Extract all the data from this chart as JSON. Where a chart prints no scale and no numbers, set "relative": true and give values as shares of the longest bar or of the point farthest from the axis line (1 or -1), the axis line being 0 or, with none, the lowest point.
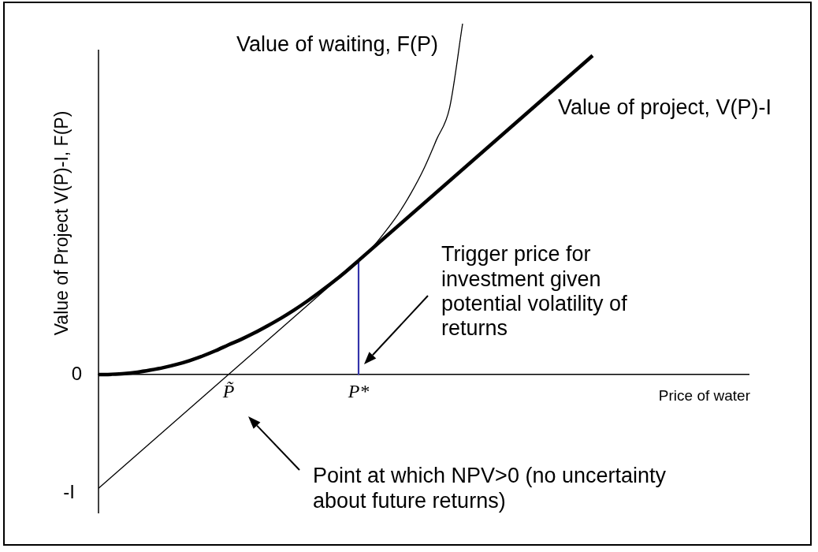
{
  "chart_data": {
    "type": "line",
    "relative": true,
    "xlabel": "Price of water",
    "ylabel": "Value of Project V(P)-I, F(P)",
    "categories": [
      null,
      null,
      null,
      null,
      null,
      null,
      null,
      null,
      null,
      null,
      "P̃",
      null,
      null,
      null,
      null,
      null,
      null,
      null,
      null,
      null,
      "P*",
      null,
      null,
      null,
      null,
      null,
      null,
      null,
      null,
      null,
      null,
      null,
      null,
      null,
      null,
      null,
      null,
      null,
      null,
      null,
      null,
      null,
      null,
      null,
      null,
      null,
      null,
      null,
      null,
      null,
      null
    ],
    "grid": false,
    "legend": false,
    "marker": "none",
    "series": [
      {
        "name": "Value of waiting, F(P)",
        "color": "#000000",
        "values": [
          null,
          null,
          null,
          null,
          null,
          null,
          null,
          null,
          null,
          null,
          null,
          null,
          null,
          null,
          null,
          null,
          null,
          null,
          null,
          null,
          0.325,
          0.36,
          0.405,
          0.455,
          0.515,
          0.585,
          0.67,
          0.76,
          1.0,
          null,
          null,
          null,
          null,
          null,
          null,
          null,
          null,
          null,
          null,
          null,
          null,
          null,
          null,
          null,
          null,
          null,
          null,
          null,
          null,
          null,
          null
        ]
      },
      {
        "color": "#000000",
        "values": [
          0,
          0.001,
          0.003,
          0.007,
          0.013,
          0.02,
          0.029,
          0.04,
          0.053,
          0.068,
          0.085,
          0.101,
          0.119,
          0.139,
          0.16,
          0.183,
          0.208,
          0.235,
          0.263,
          0.293,
          0.325,
          null,
          null,
          null,
          null,
          null,
          null,
          null,
          null,
          null,
          null,
          null,
          null,
          null,
          null,
          null,
          null,
          null,
          null,
          null,
          null,
          null,
          null,
          null,
          null,
          null,
          null,
          null,
          null,
          null,
          null
        ]
      },
      {
        "name": "Value of project, V(P)-I",
        "color": "#000000",
        "values": [
          null,
          null,
          null,
          null,
          null,
          null,
          null,
          null,
          null,
          null,
          null,
          null,
          null,
          null,
          null,
          null,
          null,
          null,
          null,
          null,
          0.325,
          null,
          null,
          null,
          null,
          null,
          null,
          null,
          null,
          null,
          null,
          null,
          null,
          null,
          null,
          null,
          null,
          null,
          0.909,
          null,
          null,
          null,
          null,
          null,
          null,
          null,
          null,
          null,
          null,
          null,
          null
        ]
      },
      {
        "color": "#000000",
        "values": [
          -0.324,
          null,
          null,
          null,
          null,
          null,
          null,
          null,
          null,
          null,
          null,
          null,
          null,
          null,
          null,
          null,
          null,
          null,
          null,
          null,
          0.325,
          null,
          null,
          null,
          null,
          null,
          null,
          null,
          null,
          null,
          null,
          null,
          null,
          null,
          null,
          null,
          null,
          null,
          null,
          null,
          null,
          null,
          null,
          null,
          null,
          null,
          null,
          null,
          null,
          null,
          null
        ]
      },
      {
        "type": "bar",
        "color": "#3333aa",
        "values": [
          null,
          null,
          null,
          null,
          null,
          null,
          null,
          null,
          null,
          null,
          null,
          null,
          null,
          null,
          null,
          null,
          null,
          null,
          null,
          null,
          0.325,
          null,
          null,
          null,
          null,
          null,
          null,
          null,
          null,
          null,
          null,
          null,
          null,
          null,
          null,
          null,
          null,
          null,
          null,
          null,
          null,
          null,
          null,
          null,
          null,
          null,
          null,
          null,
          null,
          null,
          null
        ]
      }
    ],
    "annotations": [
      "0",
      "-I",
      "Trigger price for investment given potential volatility of returns",
      "Point at which NPV>0 (no uncertainty about future returns)"
    ]
  }
}
